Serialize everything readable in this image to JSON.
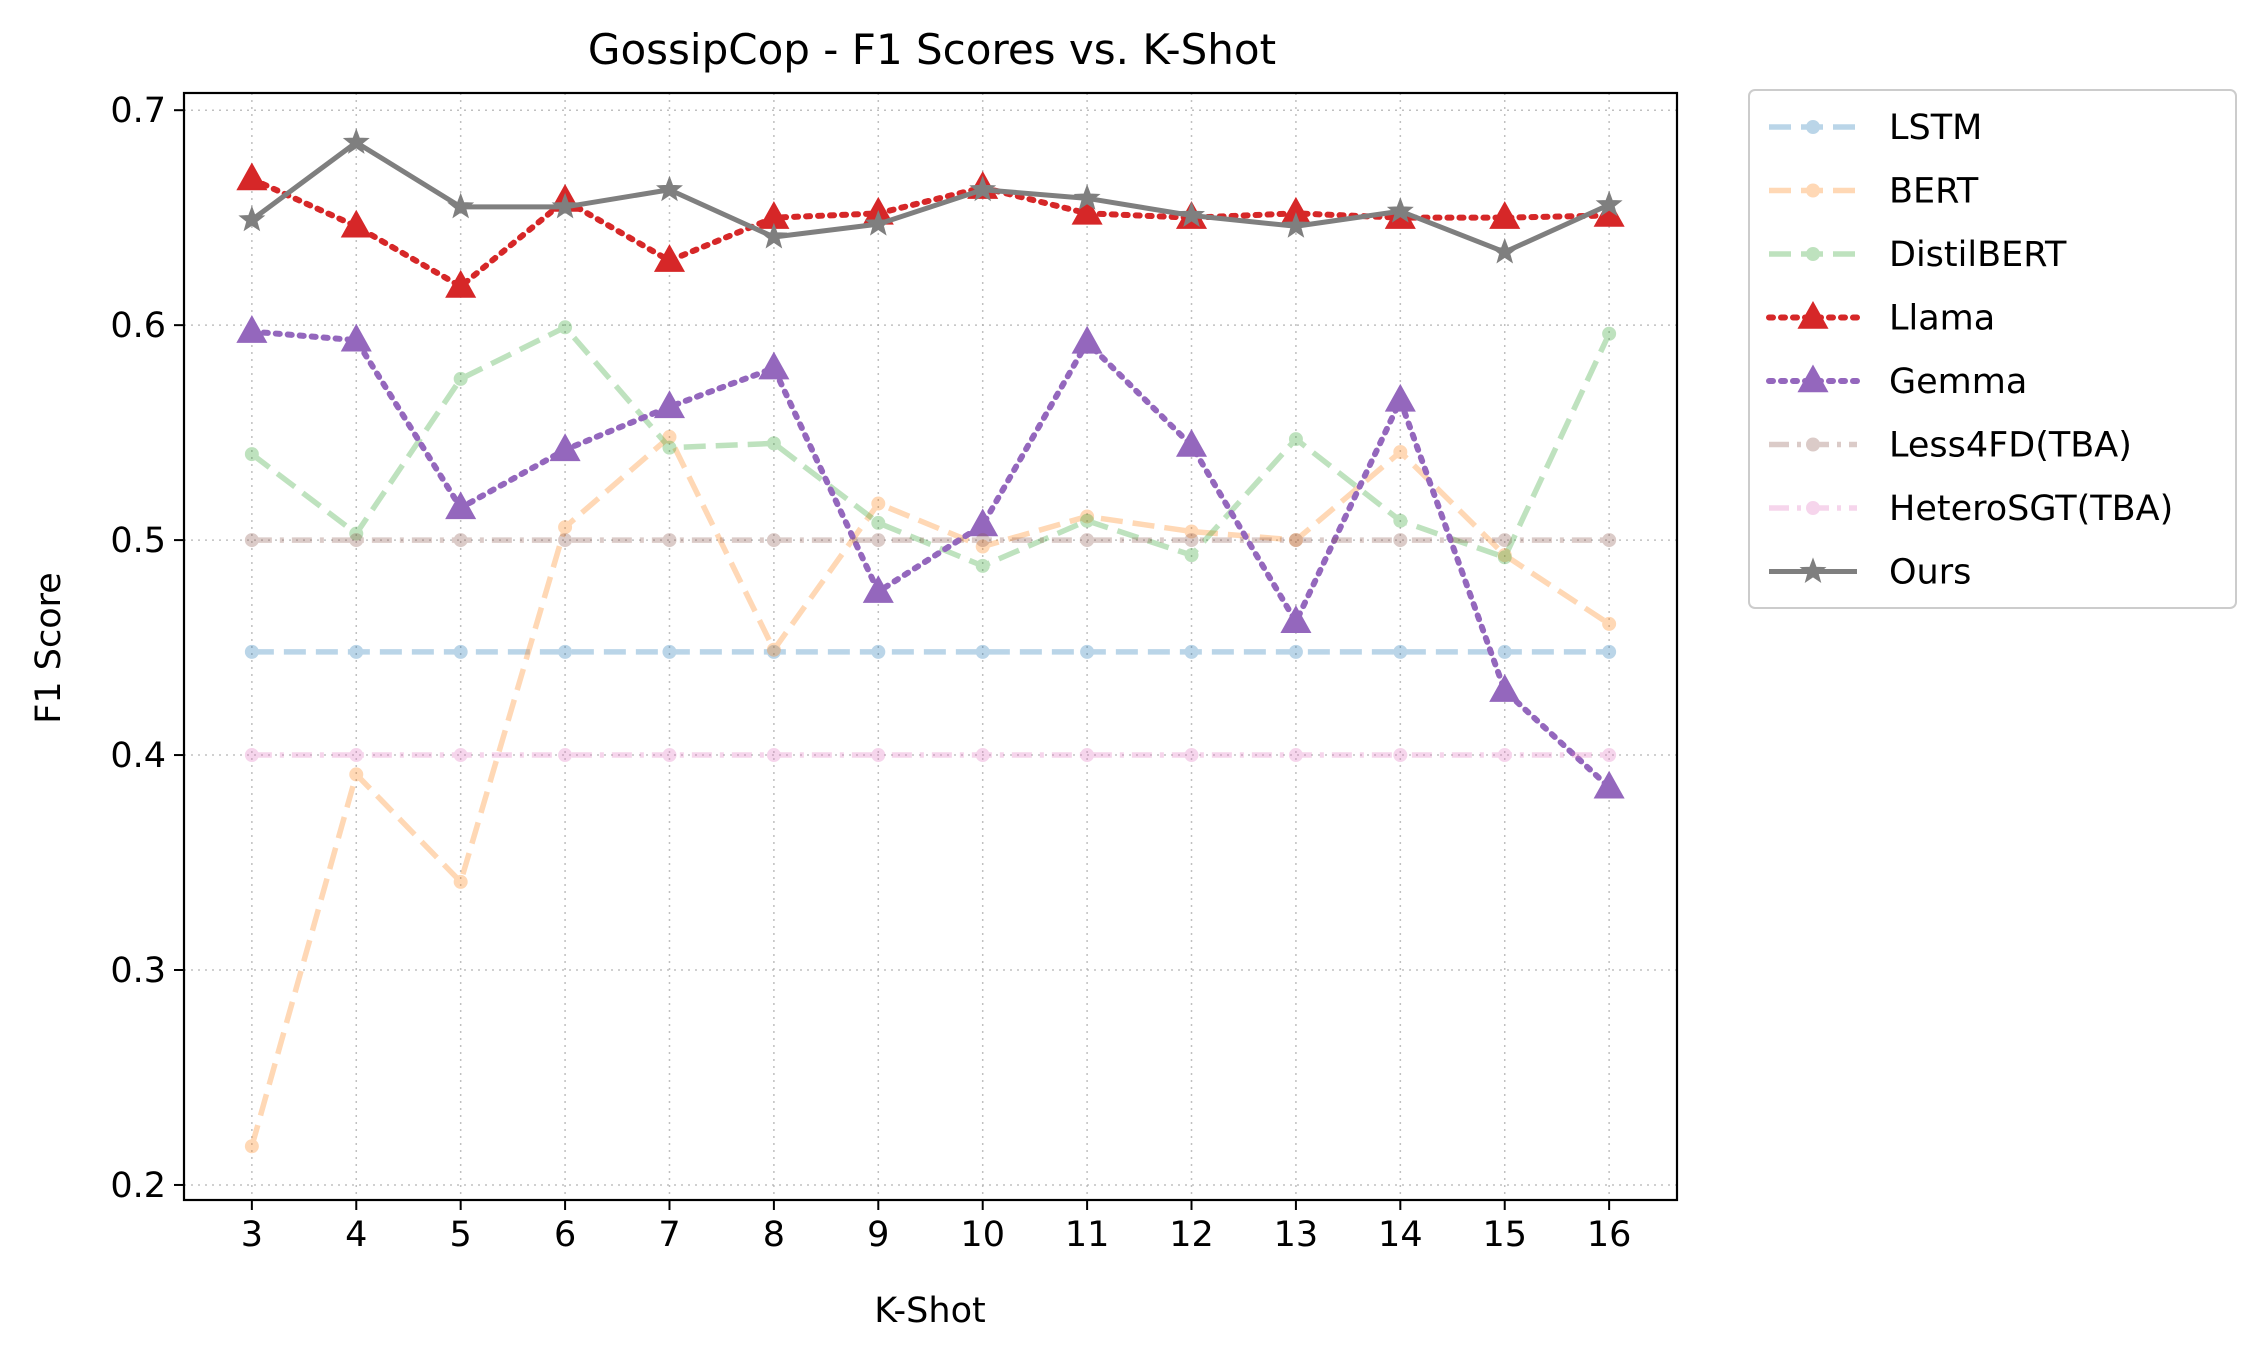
{
  "chart_data": {
    "type": "line",
    "title": "GossipCop - F1 Scores vs. K-Shot",
    "xlabel": "K-Shot",
    "ylabel": "F1 Score",
    "x": [
      3,
      4,
      5,
      6,
      7,
      8,
      9,
      10,
      11,
      12,
      13,
      14,
      15,
      16
    ],
    "x_ticks": [
      "3",
      "4",
      "5",
      "6",
      "7",
      "8",
      "9",
      "10",
      "11",
      "12",
      "13",
      "14",
      "15",
      "16"
    ],
    "y_ticks": [
      "0.2",
      "0.3",
      "0.4",
      "0.5",
      "0.6",
      "0.7"
    ],
    "ylim": [
      0.193,
      0.708
    ],
    "xlim": [
      2.35,
      16.65
    ],
    "grid": true,
    "legend_position": "outside-right-top",
    "series": [
      {
        "name": "LSTM",
        "color": "#1f77b4",
        "linestyle": "dashed",
        "marker": "circle",
        "opacity": 0.3,
        "values": [
          0.448,
          0.448,
          0.448,
          0.448,
          0.448,
          0.448,
          0.448,
          0.448,
          0.448,
          0.448,
          0.448,
          0.448,
          0.448,
          0.448
        ]
      },
      {
        "name": "BERT",
        "color": "#ff7f0e",
        "linestyle": "dashed",
        "marker": "circle",
        "opacity": 0.3,
        "values": [
          0.218,
          0.391,
          0.341,
          0.506,
          0.548,
          0.449,
          0.517,
          0.497,
          0.511,
          0.504,
          0.5,
          0.541,
          0.493,
          0.461
        ]
      },
      {
        "name": "DistilBERT",
        "color": "#2ca02c",
        "linestyle": "dashed",
        "marker": "circle",
        "opacity": 0.3,
        "values": [
          0.54,
          0.503,
          0.575,
          0.599,
          0.543,
          0.545,
          0.508,
          0.488,
          0.509,
          0.493,
          0.547,
          0.509,
          0.492,
          0.596
        ]
      },
      {
        "name": "Llama",
        "color": "#d62728",
        "linestyle": "dotted",
        "marker": "triangle",
        "opacity": 1,
        "values": [
          0.668,
          0.646,
          0.618,
          0.658,
          0.63,
          0.65,
          0.652,
          0.664,
          0.652,
          0.65,
          0.652,
          0.65,
          0.65,
          0.651
        ]
      },
      {
        "name": "Gemma",
        "color": "#9467bd",
        "linestyle": "dotted",
        "marker": "triangle",
        "opacity": 1,
        "values": [
          0.597,
          0.593,
          0.515,
          0.542,
          0.562,
          0.58,
          0.476,
          0.507,
          0.592,
          0.544,
          0.462,
          0.565,
          0.43,
          0.385
        ]
      },
      {
        "name": "Less4FD(TBA)",
        "color": "#8c564b",
        "linestyle": "dashdot",
        "marker": "circle",
        "opacity": 0.3,
        "values": [
          0.5,
          0.5,
          0.5,
          0.5,
          0.5,
          0.5,
          0.5,
          0.5,
          0.5,
          0.5,
          0.5,
          0.5,
          0.5,
          0.5
        ]
      },
      {
        "name": "HeteroSGT(TBA)",
        "color": "#e377c2",
        "linestyle": "dashdot",
        "marker": "circle",
        "opacity": 0.3,
        "values": [
          0.4,
          0.4,
          0.4,
          0.4,
          0.4,
          0.4,
          0.4,
          0.4,
          0.4,
          0.4,
          0.4,
          0.4,
          0.4,
          0.4
        ]
      },
      {
        "name": "Ours",
        "color": "#7f7f7f",
        "linestyle": "solid",
        "marker": "star",
        "opacity": 1,
        "values": [
          0.649,
          0.685,
          0.655,
          0.655,
          0.663,
          0.641,
          0.647,
          0.663,
          0.659,
          0.651,
          0.646,
          0.653,
          0.634,
          0.656
        ]
      }
    ]
  }
}
